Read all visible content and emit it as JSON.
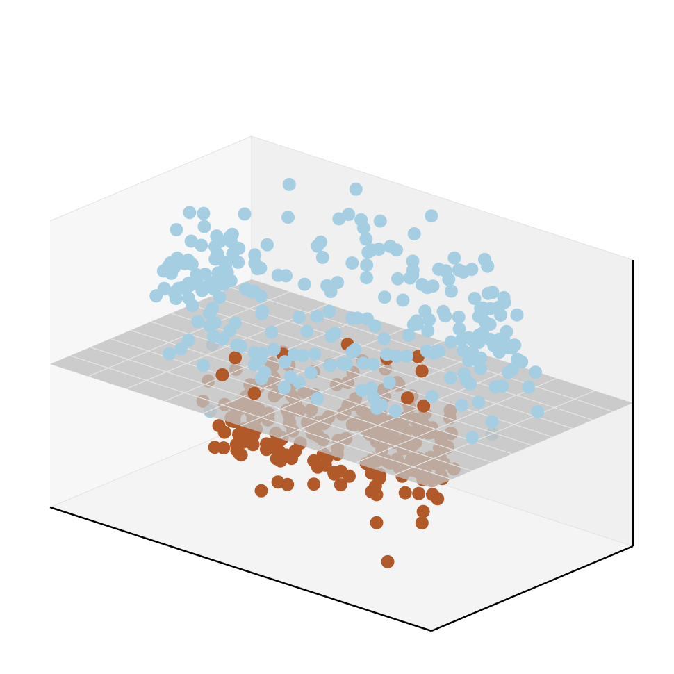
{
  "chart_data": {
    "type": "scatter",
    "projection": "3d",
    "title": "",
    "xlabel": "",
    "ylabel": "",
    "zlabel": "",
    "ticks_visible": false,
    "grid": false,
    "legend": "none",
    "xlim": [
      -1.4,
      1.4
    ],
    "ylim": [
      -1.4,
      1.4
    ],
    "zlim": [
      -1.8,
      1.3
    ],
    "colors": {
      "outer": "#a6cee3",
      "inner": "#b15928",
      "plane": "#c0c0c0",
      "pane_back": "#f0f0f0",
      "pane_side": "#f7f7f7",
      "pane_floor": "#f4f4f4"
    },
    "decision_plane_z": -0.25,
    "series": [
      {
        "key": "outer",
        "shape": "ring",
        "count": 250,
        "radius": 1.05,
        "radius_noise": 0.12,
        "z_center": 0.55,
        "z_noise": 0.3
      },
      {
        "key": "inner",
        "shape": "ring",
        "count": 250,
        "radius": 0.65,
        "radius_noise": 0.1,
        "z_center": -0.8,
        "z_noise": 0.3
      }
    ]
  }
}
